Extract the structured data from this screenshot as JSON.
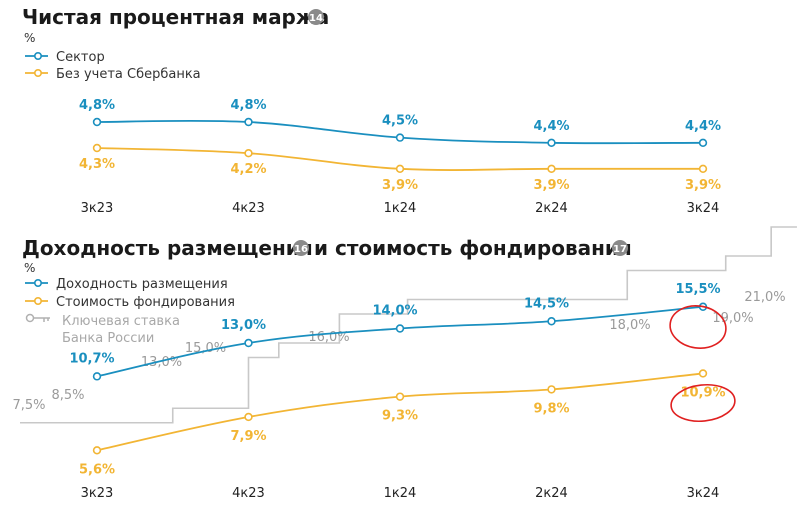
{
  "charts": {
    "nim": {
      "title": "Чистая процентная маржа",
      "badge": "14",
      "unit": "%"
    },
    "yields": {
      "title_part1": "Доходность размещения",
      "badge1": "16",
      "title_part2": "и стоимость фондирования",
      "badge2": "17",
      "unit": "%",
      "key_rate_legend_line1": "Ключевая ставка",
      "key_rate_legend_line2": "Банка России"
    }
  },
  "colors": {
    "blue": "#1a8fbf",
    "orange": "#f2b534",
    "gray": "#c8c8c8",
    "highlight": "#e02020"
  },
  "chart_data": [
    {
      "type": "line",
      "title": "Чистая процентная маржа",
      "ylabel": "%",
      "categories": [
        "3к23",
        "4к23",
        "1к24",
        "2к24",
        "3к24"
      ],
      "series": [
        {
          "name": "Сектор",
          "values": [
            4.8,
            4.8,
            4.5,
            4.4,
            4.4
          ],
          "labels": [
            "4,8%",
            "4,8%",
            "4,5%",
            "4,4%",
            "4,4%"
          ]
        },
        {
          "name": "Без учета Сбербанка",
          "values": [
            4.3,
            4.2,
            3.9,
            3.9,
            3.9
          ],
          "labels": [
            "4,3%",
            "4,2%",
            "3,9%",
            "3,9%",
            "3,9%"
          ]
        }
      ],
      "legend": "top-left",
      "grid": false
    },
    {
      "type": "line",
      "title": "Доходность размещения и стоимость фондирования",
      "ylabel": "%",
      "categories": [
        "3к23",
        "4к23",
        "1к24",
        "2к24",
        "3к24"
      ],
      "series": [
        {
          "name": "Доходность размещения",
          "values": [
            10.7,
            13.0,
            14.0,
            14.5,
            15.5
          ],
          "labels": [
            "10,7%",
            "13,0%",
            "14,0%",
            "14,5%",
            "15,5%"
          ]
        },
        {
          "name": "Стоимость фондирования",
          "values": [
            5.6,
            7.9,
            9.3,
            9.8,
            10.9
          ],
          "labels": [
            "5,6%",
            "7,9%",
            "9,3%",
            "9,8%",
            "10,9%"
          ]
        }
      ],
      "key_rate": {
        "name": "Ключевая ставка Банка России",
        "steps": [
          {
            "x": 0.0,
            "value": 7.5,
            "label": "7,5%"
          },
          {
            "x": 0.5,
            "value": 8.5,
            "label": "8,5%"
          },
          {
            "x": 1.0,
            "value": 12.0,
            "label": ""
          },
          {
            "x": 1.2,
            "value": 13.0,
            "label": "13,0%"
          },
          {
            "x": 1.6,
            "value": 15.0,
            "label": "15,0%"
          },
          {
            "x": 2.05,
            "value": 16.0,
            "label": "16,0%"
          },
          {
            "x": 3.5,
            "value": 18.0,
            "label": "18,0%"
          },
          {
            "x": 4.15,
            "value": 19.0,
            "label": "19,0%"
          },
          {
            "x": 4.45,
            "value": 21.0,
            "label": "21,0%"
          }
        ]
      },
      "highlighted": [
        "15,5%",
        "10,9%"
      ],
      "legend": "top-left",
      "grid": false
    }
  ]
}
